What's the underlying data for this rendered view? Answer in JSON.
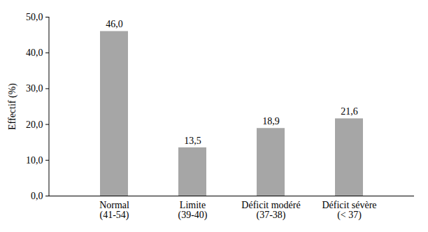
{
  "chart_data": {
    "type": "bar",
    "y_label": "Effectif (%)",
    "categories": [
      "Normal\n(41-54)",
      "Limite\n(39-40)",
      "Déficit modéré\n(37-38)",
      "Déficit sévère\n(< 37)"
    ],
    "values": [
      46.0,
      13.5,
      18.9,
      21.6
    ],
    "value_labels": [
      "46,0",
      "13,5",
      "18,9",
      "21,6"
    ],
    "color": "#a6a6a6",
    "ylim": [
      0,
      50
    ],
    "yticks": [
      {
        "value": 0,
        "label": "0,0"
      },
      {
        "value": 10,
        "label": "10,0"
      },
      {
        "value": 20,
        "label": "20,0"
      },
      {
        "value": 30,
        "label": "30,0"
      },
      {
        "value": 40,
        "label": "40,0"
      },
      {
        "value": 50,
        "label": "50,0"
      }
    ],
    "grid": false,
    "data_labels": true
  }
}
